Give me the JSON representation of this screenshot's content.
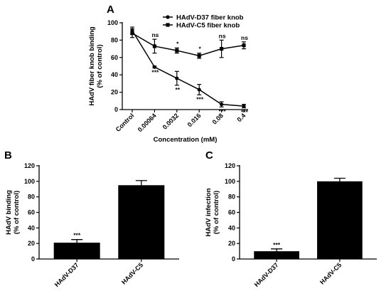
{
  "chart_data": [
    {
      "panel": "A",
      "type": "line",
      "categories": [
        "Control",
        "0.00064",
        "0.0032",
        "0.016",
        "0.08",
        "0.4"
      ],
      "xlabel": "Concentration (mM)",
      "ylabel": "HAdV fiber knob binding (% of control)",
      "ylabel_lines": [
        "HAdV fiber knob binding",
        "(% of control)"
      ],
      "ylim": [
        0,
        100
      ],
      "yticks": [
        0,
        20,
        40,
        60,
        80,
        100
      ],
      "series": [
        {
          "name": "HAdV-D37 fiber knob",
          "marker": "circle",
          "values": [
            91,
            49,
            36,
            23,
            6,
            4
          ],
          "errors": [
            4,
            1,
            8,
            6,
            3,
            2
          ],
          "significance": [
            "",
            "***",
            "**",
            "***",
            "***",
            "***"
          ]
        },
        {
          "name": "HAdV-C5 fiber knob",
          "marker": "square",
          "values": [
            88,
            73,
            68,
            62,
            70,
            74
          ],
          "errors": [
            5,
            8,
            3,
            3,
            10,
            4
          ],
          "significance": [
            "",
            "ns",
            "*",
            "*",
            "ns",
            "ns"
          ]
        }
      ]
    },
    {
      "panel": "B",
      "type": "bar",
      "categories": [
        "HAdV-D37",
        "HAdV-C5"
      ],
      "values": [
        21,
        95
      ],
      "errors": [
        4,
        6
      ],
      "significance": [
        "***",
        ""
      ],
      "ylabel": "HAdV binding (% of control)",
      "ylabel_lines": [
        "HAdV binding",
        "(% of control)"
      ],
      "ylim": [
        0,
        120
      ],
      "yticks": [
        0,
        20,
        40,
        60,
        80,
        100,
        120
      ]
    },
    {
      "panel": "C",
      "type": "bar",
      "categories": [
        "HAdV-D37",
        "HAdV-C5"
      ],
      "values": [
        10,
        100
      ],
      "errors": [
        3,
        4
      ],
      "significance": [
        "***",
        ""
      ],
      "ylabel": "HAdV infection (% of control)",
      "ylabel_lines": [
        "HAdV infection",
        "(% of control)"
      ],
      "ylim": [
        0,
        120
      ],
      "yticks": [
        0,
        20,
        40,
        60,
        80,
        100,
        120
      ]
    }
  ]
}
